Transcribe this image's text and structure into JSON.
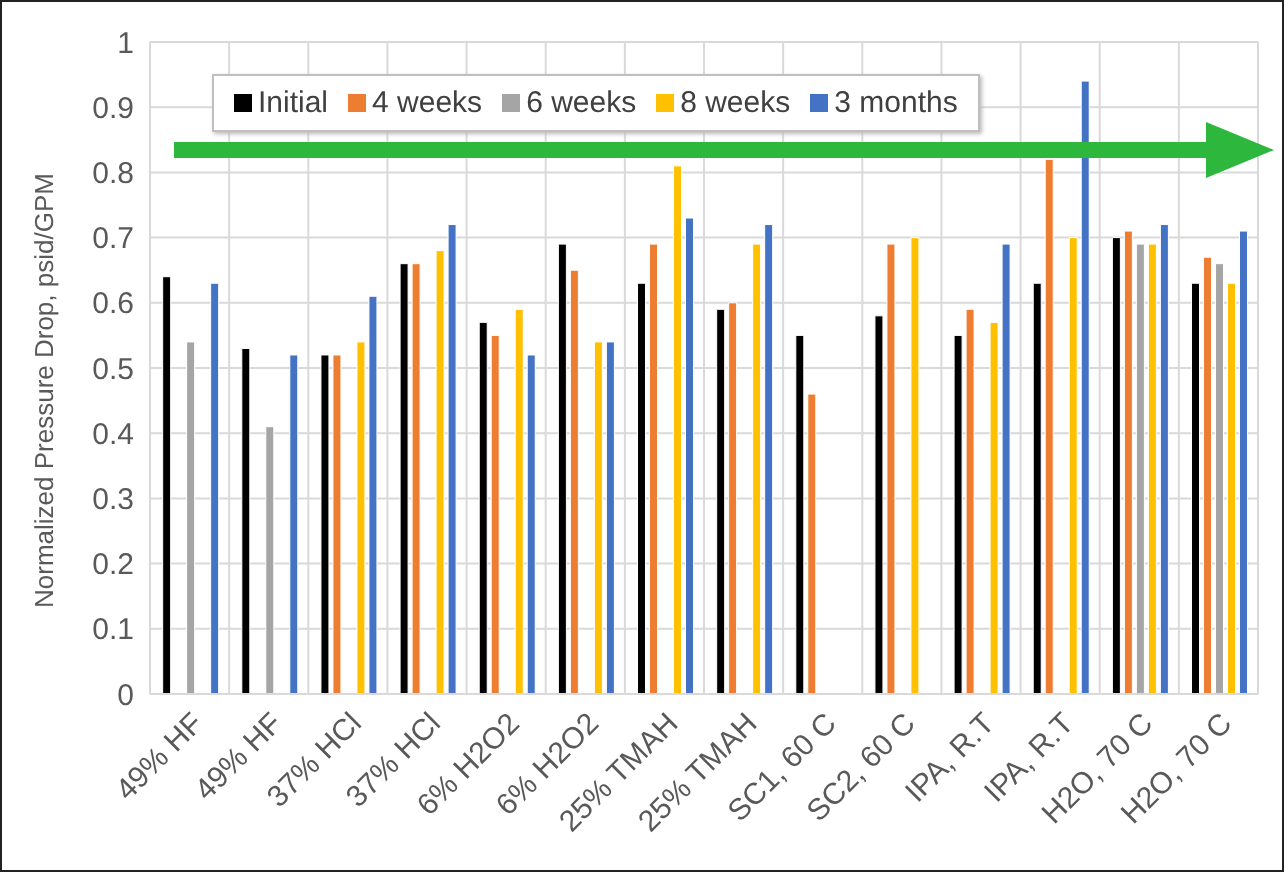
{
  "chart_data": {
    "type": "bar",
    "ylabel": "Normalized Pressure Drop, psid/GPM",
    "categories": [
      "49% HF",
      "49% HF",
      "37% HCl",
      "37% HCl",
      "6% H2O2",
      "6% H2O2",
      "25% TMAH",
      "25% TMAH",
      "SC1, 60 C",
      "SC2, 60 C",
      "IPA, R.T",
      "IPA, R.T",
      "H2O, 70 C",
      "H2O, 70 C"
    ],
    "series": [
      {
        "name": "Initial",
        "color": "#000000",
        "values": [
          0.64,
          0.53,
          0.52,
          0.66,
          0.57,
          0.69,
          0.63,
          0.59,
          0.55,
          0.58,
          0.55,
          0.63,
          0.7,
          0.63
        ]
      },
      {
        "name": "4 weeks",
        "color": "#ed7d31",
        "values": [
          null,
          null,
          0.52,
          0.66,
          0.55,
          0.65,
          0.69,
          0.6,
          0.46,
          0.69,
          0.59,
          0.82,
          0.71,
          0.67
        ]
      },
      {
        "name": "6 weeks",
        "color": "#a5a5a5",
        "values": [
          0.54,
          0.41,
          null,
          null,
          null,
          null,
          null,
          null,
          null,
          null,
          null,
          null,
          0.69,
          0.66
        ]
      },
      {
        "name": "8 weeks",
        "color": "#ffc000",
        "values": [
          null,
          null,
          0.54,
          0.68,
          0.59,
          0.54,
          0.81,
          0.69,
          null,
          0.7,
          0.57,
          0.7,
          0.69,
          0.63
        ]
      },
      {
        "name": "3 months",
        "color": "#4472c4",
        "values": [
          0.63,
          0.52,
          0.61,
          0.72,
          0.52,
          0.54,
          0.73,
          0.72,
          null,
          null,
          0.69,
          0.94,
          0.72,
          0.71
        ]
      }
    ],
    "ylim": [
      0,
      1
    ],
    "yticks": [
      0,
      0.1,
      0.2,
      0.3,
      0.4,
      0.5,
      0.6,
      0.7,
      0.8,
      0.9,
      1
    ],
    "grid": true,
    "legend": "top"
  }
}
